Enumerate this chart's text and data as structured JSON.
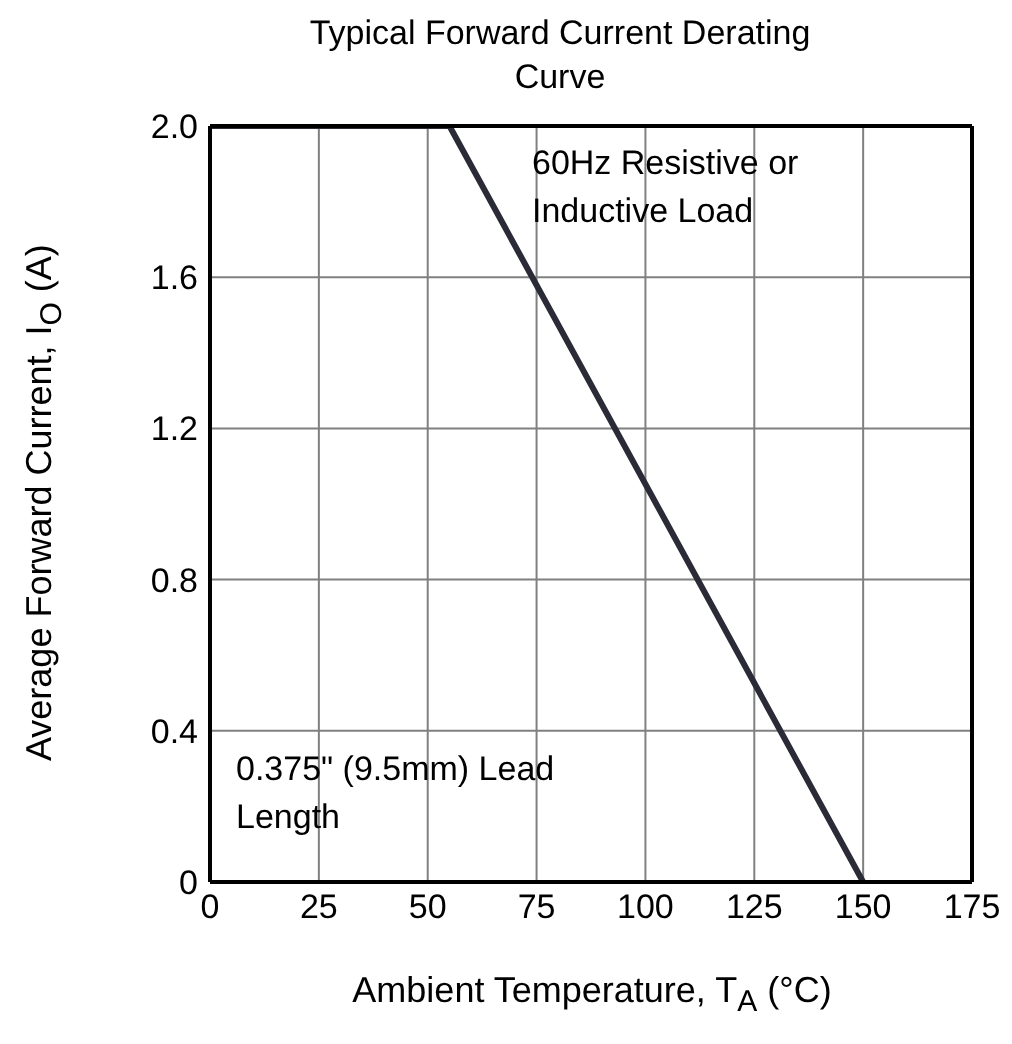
{
  "chart_data": {
    "type": "line",
    "title": "Typical Forward Current Derating Curve",
    "xlabel": "Ambient Temperature, T$_{A}$ (°C)",
    "ylabel": "Average Forward Current, I$_{O}$ (A)",
    "x": [
      0,
      55,
      150
    ],
    "series": [
      {
        "color": "#2b2b38",
        "values": [
          2.0,
          2.0,
          0
        ]
      }
    ],
    "xlim": [
      0,
      175
    ],
    "xticks": [
      0,
      25,
      50,
      75,
      100,
      125,
      150,
      175
    ],
    "ylim": [
      0,
      2.0
    ],
    "yticks": [
      0,
      0.4,
      0.8,
      1.2,
      1.6,
      {
        "value": 2.0,
        "label": "2.0"
      }
    ],
    "grid": true,
    "legend": false,
    "marker": "none",
    "line_style": "solid",
    "annotations": [
      "60Hz Resistive or Inductive Load",
      "0.375\" (9.5mm) Lead Length"
    ]
  }
}
